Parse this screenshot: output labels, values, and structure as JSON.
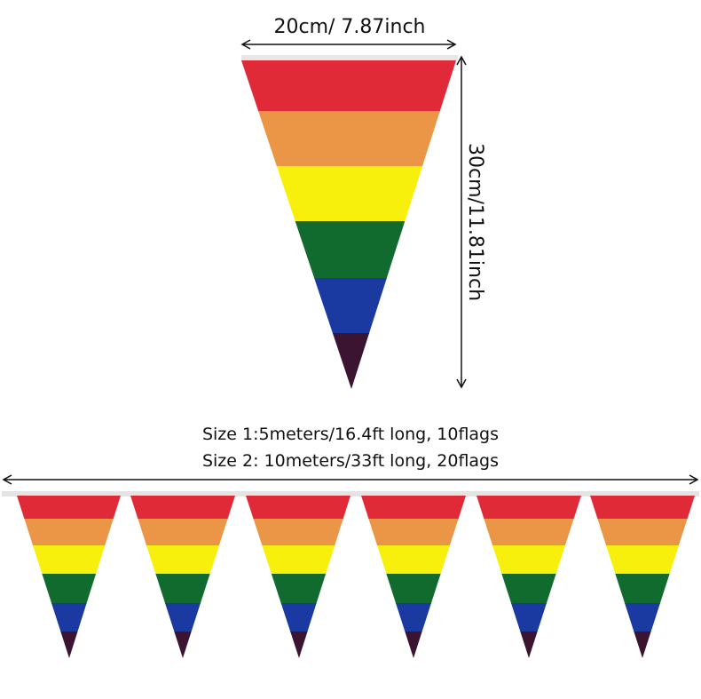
{
  "dimensions": {
    "width_label": "20cm/ 7.87inch",
    "height_label": "30cm/11.81inch"
  },
  "sizes": {
    "size1": "Size 1:5meters/16.4ft long, 10flags",
    "size2": "Size 2: 10meters/33ft long, 20flags"
  },
  "colors": {
    "stripes": [
      "#e02a38",
      "#ea9646",
      "#f7f00c",
      "#126b2e",
      "#1a3aa2",
      "#3a1430"
    ],
    "tape": "#e4e4e4",
    "arrow": "#111111",
    "background": "#ffffff"
  },
  "large_flag": {
    "stripe_count": 6
  },
  "bunting": {
    "visible_flag_count": 6
  }
}
